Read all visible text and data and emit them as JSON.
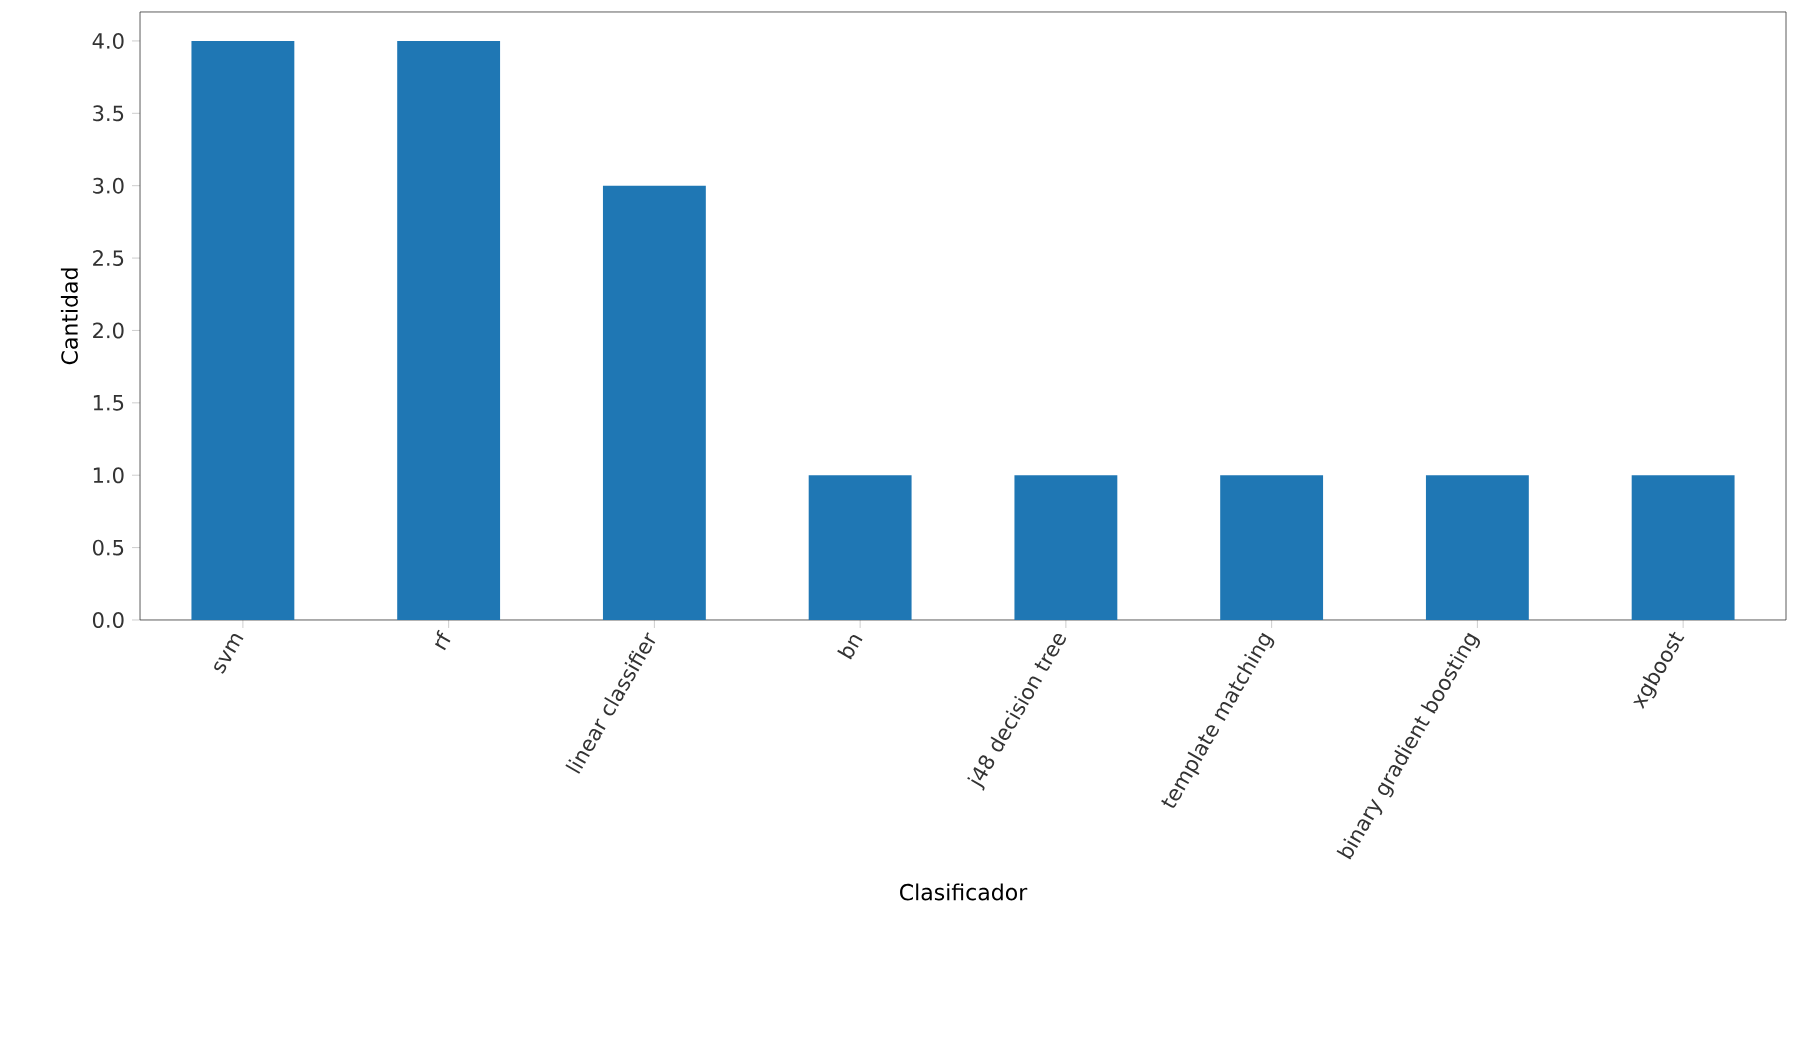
{
  "chart_data": {
    "type": "bar",
    "xlabel": "Clasificador",
    "ylabel": "Cantidad",
    "categories": [
      "svm",
      "rf",
      "linear classifier",
      "bn",
      "j48 decision tree",
      "template matching",
      "binary gradient boosting",
      "xgboost"
    ],
    "values": [
      4,
      4,
      3,
      1,
      1,
      1,
      1,
      1
    ],
    "color": "#1f77b4",
    "ylim": [
      0,
      4.2
    ],
    "yticks": [
      {
        "value": 0,
        "label": "0.0"
      },
      {
        "value": 0.5,
        "label": "0.5"
      },
      {
        "value": 1,
        "label": "1.0"
      },
      {
        "value": 1.5,
        "label": "1.5"
      },
      {
        "value": 2,
        "label": "2.0"
      },
      {
        "value": 2.5,
        "label": "2.5"
      },
      {
        "value": 3,
        "label": "3.0"
      },
      {
        "value": 3.5,
        "label": "3.5"
      },
      {
        "value": 4,
        "label": "4.0"
      }
    ],
    "grid": false
  }
}
